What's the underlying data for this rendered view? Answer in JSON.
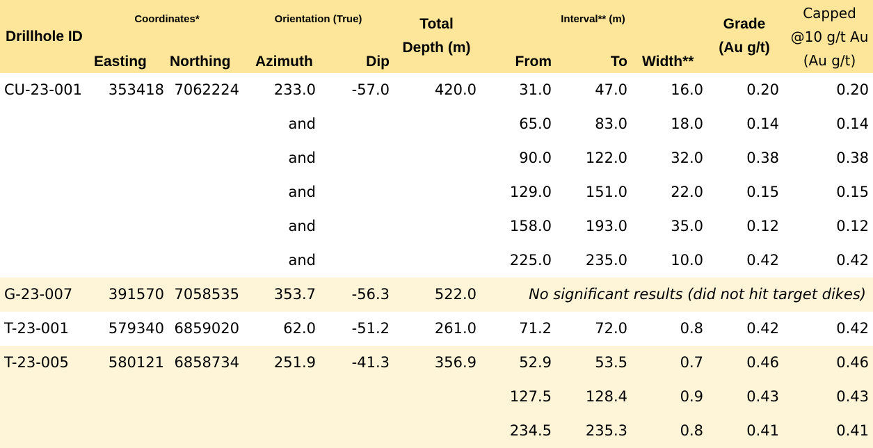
{
  "header": {
    "drillhole_id": "Drillhole ID",
    "coordinates": "Coordinates*",
    "easting": "Easting",
    "northing": "Northing",
    "orientation": "Orientation (True)",
    "azimuth": "Azimuth",
    "dip": "Dip",
    "total_line1": "Total",
    "total_line2": "Depth (m)",
    "interval": "Interval** (m)",
    "from": "From",
    "to": "To",
    "width": "Width**",
    "grade_line1": "Grade",
    "grade_line2": "(Au g/t)",
    "capped_line1": "Capped",
    "capped_line2": "@10 g/t Au",
    "capped_line3": "(Au g/t)"
  },
  "rows": [
    {
      "id": "CU-23-001",
      "easting": "353418",
      "northing": "7062224",
      "azimuth": "233.0",
      "dip": "-57.0",
      "total": "420.0",
      "from": "31.0",
      "to": "47.0",
      "width": "16.0",
      "grade": "0.20",
      "capped": "0.20"
    },
    {
      "id": "",
      "easting": "",
      "northing": "",
      "azimuth": "and",
      "dip": "",
      "total": "",
      "from": "65.0",
      "to": "83.0",
      "width": "18.0",
      "grade": "0.14",
      "capped": "0.14"
    },
    {
      "id": "",
      "easting": "",
      "northing": "",
      "azimuth": "and",
      "dip": "",
      "total": "",
      "from": "90.0",
      "to": "122.0",
      "width": "32.0",
      "grade": "0.38",
      "capped": "0.38"
    },
    {
      "id": "",
      "easting": "",
      "northing": "",
      "azimuth": "and",
      "dip": "",
      "total": "",
      "from": "129.0",
      "to": "151.0",
      "width": "22.0",
      "grade": "0.15",
      "capped": "0.15"
    },
    {
      "id": "",
      "easting": "",
      "northing": "",
      "azimuth": "and",
      "dip": "",
      "total": "",
      "from": "158.0",
      "to": "193.0",
      "width": "35.0",
      "grade": "0.12",
      "capped": "0.12"
    },
    {
      "id": "",
      "easting": "",
      "northing": "",
      "azimuth": "and",
      "dip": "",
      "total": "",
      "from": "225.0",
      "to": "235.0",
      "width": "10.0",
      "grade": "0.42",
      "capped": "0.42"
    },
    {
      "id": "G-23-007",
      "easting": "391570",
      "northing": "7058535",
      "azimuth": "353.7",
      "dip": "-56.3",
      "total": "522.0",
      "note": "No significant results (did not hit target dikes)"
    },
    {
      "id": "T-23-001",
      "easting": "579340",
      "northing": "6859020",
      "azimuth": "62.0",
      "dip": "-51.2",
      "total": "261.0",
      "from": "71.2",
      "to": "72.0",
      "width": "0.8",
      "grade": "0.42",
      "capped": "0.42"
    },
    {
      "id": "T-23-005",
      "easting": "580121",
      "northing": "6858734",
      "azimuth": "251.9",
      "dip": "-41.3",
      "total": "356.9",
      "from": "52.9",
      "to": "53.5",
      "width": "0.7",
      "grade": "0.46",
      "capped": "0.46"
    },
    {
      "id": "",
      "easting": "",
      "northing": "",
      "azimuth": "",
      "dip": "",
      "total": "",
      "from": "127.5",
      "to": "128.4",
      "width": "0.9",
      "grade": "0.43",
      "capped": "0.43"
    },
    {
      "id": "",
      "easting": "",
      "northing": "",
      "azimuth": "",
      "dip": "",
      "total": "",
      "from": "234.5",
      "to": "235.3",
      "width": "0.8",
      "grade": "0.41",
      "capped": "0.41"
    }
  ],
  "colors": {
    "header_bg": "#fde69a",
    "shaded_row_bg": "#fef4d8",
    "plain_row_bg": "#ffffff"
  }
}
